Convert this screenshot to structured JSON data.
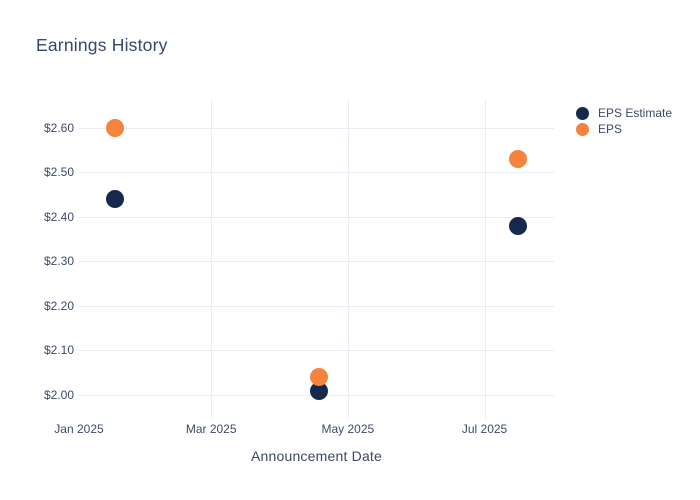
{
  "title": "Earnings History",
  "x_axis": {
    "label": "Announcement Date"
  },
  "colors": {
    "background": "#ffffff",
    "grid": "#e9eef5",
    "title_text": "#36476a",
    "tick_text": "#3e4c68",
    "eps_estimate": "#16294c",
    "eps": "#f5823d"
  },
  "legend": {
    "items": [
      {
        "label": "EPS Estimate",
        "color": "#16294c"
      },
      {
        "label": "EPS",
        "color": "#f5823d"
      }
    ]
  },
  "chart_data": {
    "type": "scatter",
    "title": "Earnings History",
    "xlabel": "Announcement Date",
    "ylabel": "",
    "grid": true,
    "legend_position": "outside-top-right",
    "x_range": [
      "2025-01-01",
      "2025-08-01"
    ],
    "ylim": [
      1.955,
      2.665
    ],
    "x_ticks": [
      {
        "date": "2025-01-01",
        "label": "Jan 2025",
        "gridline": false
      },
      {
        "date": "2025-03-01",
        "label": "Mar 2025",
        "gridline": true
      },
      {
        "date": "2025-05-01",
        "label": "May 2025",
        "gridline": true
      },
      {
        "date": "2025-07-01",
        "label": "Jul 2025",
        "gridline": true
      }
    ],
    "y_ticks": [
      {
        "value": 2.0,
        "label": "$2.00"
      },
      {
        "value": 2.1,
        "label": "$2.10"
      },
      {
        "value": 2.2,
        "label": "$2.20"
      },
      {
        "value": 2.3,
        "label": "$2.30"
      },
      {
        "value": 2.4,
        "label": "$2.40"
      },
      {
        "value": 2.5,
        "label": "$2.50"
      },
      {
        "value": 2.6,
        "label": "$2.60"
      }
    ],
    "series": [
      {
        "name": "EPS Estimate",
        "color": "#16294c",
        "points": [
          {
            "x": "2025-01-17",
            "y": 2.44
          },
          {
            "x": "2025-04-18",
            "y": 2.01
          },
          {
            "x": "2025-07-16",
            "y": 2.38
          }
        ]
      },
      {
        "name": "EPS",
        "color": "#f5823d",
        "points": [
          {
            "x": "2025-01-17",
            "y": 2.6
          },
          {
            "x": "2025-04-18",
            "y": 2.04
          },
          {
            "x": "2025-07-16",
            "y": 2.53
          }
        ]
      }
    ]
  }
}
